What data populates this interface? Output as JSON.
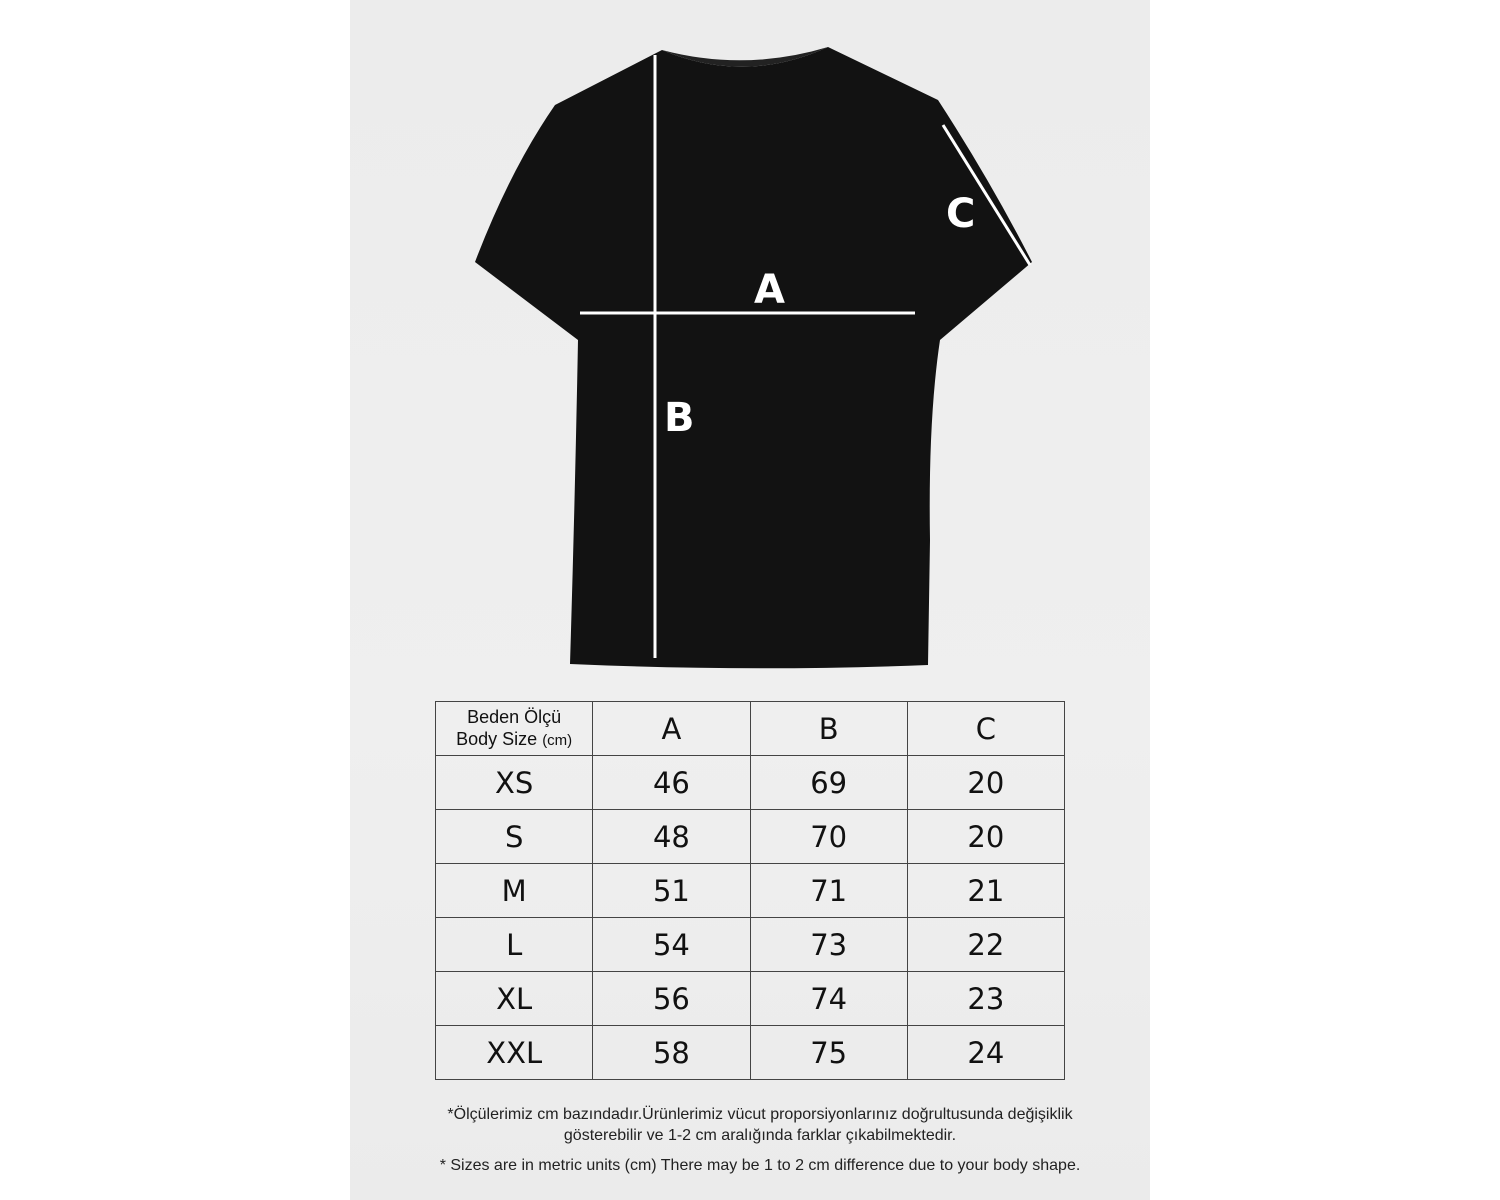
{
  "diagram_labels": {
    "a": "A",
    "b": "B",
    "c": "C"
  },
  "table": {
    "header_line1": "Beden Ölçü",
    "header_line2": "Body Size",
    "header_unit": "(cm)",
    "columns": [
      "A",
      "B",
      "C"
    ],
    "rows": [
      {
        "size": "XS",
        "values": [
          "46",
          "69",
          "20"
        ]
      },
      {
        "size": "S",
        "values": [
          "48",
          "70",
          "20"
        ]
      },
      {
        "size": "M",
        "values": [
          "51",
          "71",
          "21"
        ]
      },
      {
        "size": "L",
        "values": [
          "54",
          "73",
          "22"
        ]
      },
      {
        "size": "XL",
        "values": [
          "56",
          "74",
          "23"
        ]
      },
      {
        "size": "XXL",
        "values": [
          "58",
          "75",
          "24"
        ]
      }
    ]
  },
  "notes": {
    "turkish": "*Ölçülerimiz cm bazındadır.Ürünlerimiz vücut proporsiyonlarınız doğrultusunda değişiklik gösterebilir ve 1-2 cm aralığında farklar çıkabilmektedir.",
    "english": "* Sizes are in metric units (cm) There may be 1 to 2 cm difference due to your body shape."
  }
}
